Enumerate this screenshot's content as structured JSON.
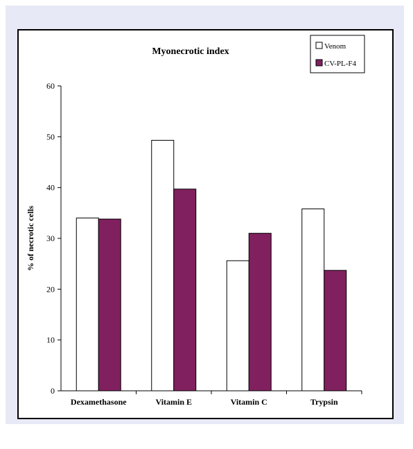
{
  "chart_data": {
    "type": "bar",
    "title": "Myonecrotic index",
    "xlabel": "",
    "ylabel": "% of necrotic cells",
    "categories": [
      "Dexamethasone",
      "Vitamin E",
      "Vitamin C",
      "Trypsin"
    ],
    "series": [
      {
        "name": "Venom",
        "values": [
          34,
          49.3,
          25.6,
          35.8
        ],
        "color": "#ffffff"
      },
      {
        "name": "CV-PL-F4",
        "values": [
          33.8,
          39.7,
          31,
          23.7
        ],
        "color": "#80205f"
      }
    ],
    "ylim": [
      0,
      60
    ],
    "yticks": [
      0,
      10,
      20,
      30,
      40,
      50,
      60
    ],
    "grid": false,
    "legend_position": "top-right"
  }
}
